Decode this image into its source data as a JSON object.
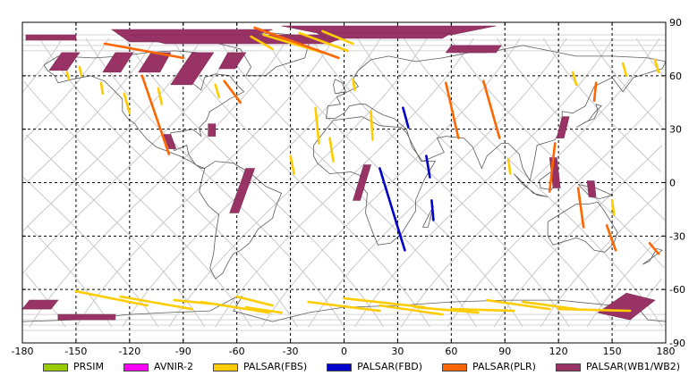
{
  "map": {
    "x_ticks": [
      "-180",
      "-150",
      "-120",
      "-90",
      "-60",
      "-30",
      "0",
      "30",
      "60",
      "90",
      "120",
      "150",
      "180"
    ],
    "y_ticks": [
      "-90",
      "-60",
      "-30",
      "0",
      "30",
      "60",
      "90"
    ],
    "x_tick_values": [
      -180,
      -150,
      -120,
      -90,
      -60,
      -30,
      0,
      30,
      60,
      90,
      120,
      150,
      180
    ],
    "y_tick_values": [
      -90,
      -60,
      -30,
      0,
      30,
      60,
      90
    ],
    "lon_range": [
      -180,
      180
    ],
    "lat_range": [
      -90,
      90
    ],
    "grid": "dashed",
    "legend_position": "bottom"
  },
  "legend": {
    "items": [
      {
        "label": "PRSIM",
        "color": "#99cc00"
      },
      {
        "label": "AVNIR-2",
        "color": "#ff00ff"
      },
      {
        "label": "PALSAR(FBS)",
        "color": "#ffcc00"
      },
      {
        "label": "PALSAR(FBD)",
        "color": "#0000cc"
      },
      {
        "label": "PALSAR(PLR)",
        "color": "#ff6600"
      },
      {
        "label": "PALSAR(WB1/WB2)",
        "color": "#993366"
      }
    ]
  },
  "chart_data": {
    "type": "map",
    "lon_range": [
      -180,
      180
    ],
    "lat_range": [
      -90,
      90
    ],
    "series": [
      {
        "name": "PALSAR(WB1/WB2)",
        "color": "#993366",
        "strips": [
          [
            [
              -178,
              83
            ],
            [
              -150,
              83
            ],
            [
              -150,
              80
            ],
            [
              -178,
              80
            ]
          ],
          [
            [
              -158,
              73
            ],
            [
              -148,
              73
            ],
            [
              -155,
              63
            ],
            [
              -165,
              63
            ]
          ],
          [
            [
              -128,
              73
            ],
            [
              -118,
              73
            ],
            [
              -125,
              62
            ],
            [
              -135,
              62
            ]
          ],
          [
            [
              -108,
              73
            ],
            [
              -97,
              73
            ],
            [
              -103,
              62
            ],
            [
              -115,
              62
            ]
          ],
          [
            [
              -85,
              73
            ],
            [
              -73,
              73
            ],
            [
              -85,
              55
            ],
            [
              -97,
              55
            ]
          ],
          [
            [
              -65,
              73
            ],
            [
              -55,
              73
            ],
            [
              -61,
              64
            ],
            [
              -70,
              64
            ]
          ],
          [
            [
              -130,
              86
            ],
            [
              -40,
              86
            ],
            [
              -60,
              79
            ],
            [
              -120,
              79
            ]
          ],
          [
            [
              -120,
              83
            ],
            [
              5,
              83
            ],
            [
              -10,
              78
            ],
            [
              -100,
              78
            ]
          ],
          [
            [
              -35,
              88
            ],
            [
              85,
              88
            ],
            [
              60,
              83
            ],
            [
              -10,
              83
            ]
          ],
          [
            [
              -15,
              84
            ],
            [
              60,
              84
            ],
            [
              55,
              81
            ],
            [
              -10,
              81
            ]
          ],
          [
            [
              60,
              77
            ],
            [
              88,
              77
            ],
            [
              85,
              73
            ],
            [
              57,
              73
            ]
          ],
          [
            [
              -101,
              27
            ],
            [
              -97,
              27
            ],
            [
              -94,
              19
            ],
            [
              -98,
              19
            ]
          ],
          [
            [
              -76,
              33
            ],
            [
              -72,
              33
            ],
            [
              -72,
              26
            ],
            [
              -76,
              26
            ]
          ],
          [
            [
              -55,
              8
            ],
            [
              -50,
              8
            ],
            [
              -59,
              -17
            ],
            [
              -64,
              -17
            ]
          ],
          [
            [
              11,
              10
            ],
            [
              15,
              10
            ],
            [
              9,
              -10
            ],
            [
              5,
              -10
            ]
          ],
          [
            [
              122,
              37
            ],
            [
              126,
              37
            ],
            [
              123,
              25
            ],
            [
              119,
              25
            ]
          ],
          [
            [
              115,
              14
            ],
            [
              119,
              14
            ],
            [
              121,
              -3
            ],
            [
              117,
              -3
            ]
          ],
          [
            [
              136,
              1
            ],
            [
              140,
              1
            ],
            [
              141,
              -8
            ],
            [
              137,
              -8
            ]
          ],
          [
            [
              -176,
              -66
            ],
            [
              -160,
              -66
            ],
            [
              -164,
              -71
            ],
            [
              -180,
              -71
            ]
          ],
          [
            [
              -160,
              -74
            ],
            [
              -128,
              -74
            ],
            [
              -128,
              -77
            ],
            [
              -160,
              -77
            ]
          ],
          [
            [
              142,
              -73
            ],
            [
              158,
              -62
            ],
            [
              174,
              -66
            ],
            [
              160,
              -77
            ]
          ]
        ]
      },
      {
        "name": "PALSAR(FBS)",
        "color": "#ffcc00",
        "lines": [
          [
            [
              -155,
              62
            ],
            [
              -154,
              58
            ]
          ],
          [
            [
              -148,
              65
            ],
            [
              -147,
              60
            ]
          ],
          [
            [
              -136,
              56
            ],
            [
              -135,
              50
            ]
          ],
          [
            [
              -123,
              50
            ],
            [
              -120,
              39
            ]
          ],
          [
            [
              -104,
              53
            ],
            [
              -102,
              44
            ]
          ],
          [
            [
              -52,
              82
            ],
            [
              -40,
              75
            ]
          ],
          [
            [
              -45,
              83
            ],
            [
              -12,
              73
            ]
          ],
          [
            [
              -25,
              84
            ],
            [
              2,
              74
            ]
          ],
          [
            [
              -12,
              85
            ],
            [
              5,
              78
            ]
          ],
          [
            [
              -72,
              55
            ],
            [
              -70,
              48
            ]
          ],
          [
            [
              -30,
              15
            ],
            [
              -28,
              5
            ]
          ],
          [
            [
              -8,
              25
            ],
            [
              -6,
              12
            ]
          ],
          [
            [
              -16,
              42
            ],
            [
              -14,
              22
            ]
          ],
          [
            [
              5,
              58
            ],
            [
              6,
              52
            ]
          ],
          [
            [
              15,
              40
            ],
            [
              16,
              24
            ]
          ],
          [
            [
              128,
              62
            ],
            [
              130,
              55
            ]
          ],
          [
            [
              156,
              67
            ],
            [
              158,
              60
            ]
          ],
          [
            [
              174,
              69
            ],
            [
              176,
              62
            ]
          ],
          [
            [
              92,
              13
            ],
            [
              93,
              5
            ]
          ],
          [
            [
              150,
              -10
            ],
            [
              151,
              -18
            ]
          ],
          [
            [
              -150,
              -61
            ],
            [
              -110,
              -69
            ]
          ],
          [
            [
              -125,
              -64
            ],
            [
              -85,
              -71
            ]
          ],
          [
            [
              -95,
              -66
            ],
            [
              -75,
              -68
            ]
          ],
          [
            [
              -60,
              -64
            ],
            [
              -40,
              -69
            ]
          ],
          [
            [
              -80,
              -67
            ],
            [
              -42,
              -73
            ]
          ],
          [
            [
              -55,
              -70
            ],
            [
              -35,
              -73
            ]
          ],
          [
            [
              -20,
              -67
            ],
            [
              20,
              -72
            ]
          ],
          [
            [
              0,
              -65
            ],
            [
              45,
              -70
            ]
          ],
          [
            [
              20,
              -69
            ],
            [
              55,
              -74
            ]
          ],
          [
            [
              40,
              -70
            ],
            [
              75,
              -73
            ]
          ],
          [
            [
              60,
              -71
            ],
            [
              95,
              -72
            ]
          ],
          [
            [
              80,
              -66
            ],
            [
              115,
              -71
            ]
          ],
          [
            [
              100,
              -67
            ],
            [
              130,
              -71
            ]
          ],
          [
            [
              120,
              -71
            ],
            [
              160,
              -72
            ]
          ]
        ]
      },
      {
        "name": "PALSAR(PLR)",
        "color": "#ff6600",
        "lines": [
          [
            [
              -134,
              78
            ],
            [
              -90,
              70
            ]
          ],
          [
            [
              -50,
              87
            ],
            [
              -3,
              70
            ]
          ],
          [
            [
              -113,
              60
            ],
            [
              -98,
              16
            ]
          ],
          [
            [
              -67,
              57
            ],
            [
              -58,
              45
            ]
          ],
          [
            [
              57,
              56
            ],
            [
              64,
              25
            ]
          ],
          [
            [
              78,
              57
            ],
            [
              87,
              25
            ]
          ],
          [
            [
              118,
              22
            ],
            [
              115,
              -5
            ]
          ],
          [
            [
              131,
              -3
            ],
            [
              134,
              -25
            ]
          ],
          [
            [
              141,
              56
            ],
            [
              140,
              46
            ]
          ],
          [
            [
              147,
              -24
            ],
            [
              152,
              -38
            ]
          ],
          [
            [
              171,
              -34
            ],
            [
              176,
              -40
            ]
          ]
        ]
      },
      {
        "name": "PALSAR(FBD)",
        "color": "#0000cc",
        "lines": [
          [
            [
              20,
              8
            ],
            [
              34,
              -38
            ]
          ],
          [
            [
              33,
              42
            ],
            [
              36,
              31
            ]
          ],
          [
            [
              46,
              15
            ],
            [
              48,
              3
            ]
          ],
          [
            [
              49,
              -10
            ],
            [
              50,
              -21
            ]
          ]
        ]
      }
    ]
  }
}
